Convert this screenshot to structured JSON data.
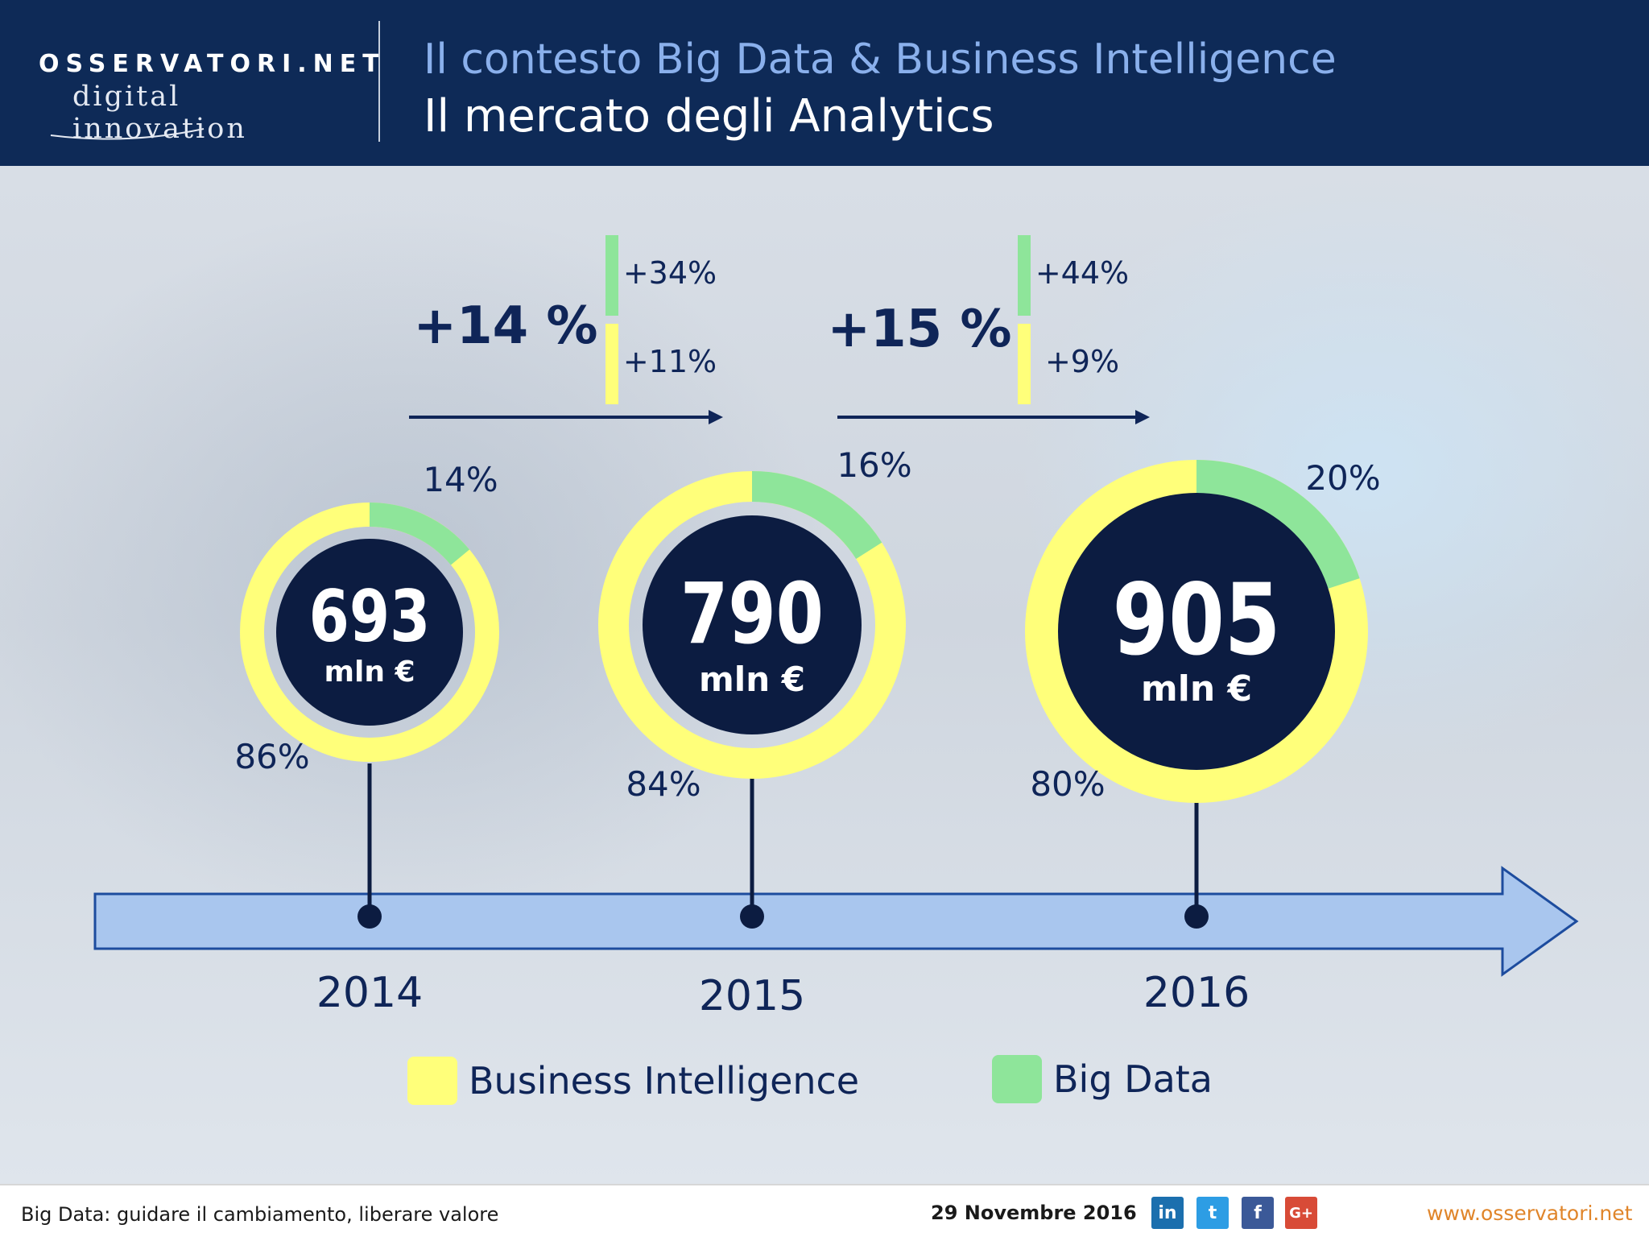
{
  "header": {
    "logo_brand": "OSSERVATORI.NET",
    "logo_sub": "digital innovation",
    "title_line1": "Il contesto Big Data & Business Intelligence",
    "title_line2": "Il mercato degli Analytics"
  },
  "colors": {
    "business_intelligence": "#ffff7a",
    "big_data": "#8ee59a",
    "donut_center": "#0c1c41",
    "timeline_fill": "#a9c6ee",
    "timeline_stroke": "#1d4c9e",
    "text_dark": "#0f2558"
  },
  "chart_data": {
    "type": "pie",
    "unit": "mln €",
    "legend": [
      "Business Intelligence",
      "Big Data"
    ],
    "legend_position": "bottom",
    "years": [
      {
        "year": "2014",
        "total": 693,
        "total_label": "693",
        "unit_label": "mln €",
        "big_data_pct": 14,
        "bi_pct": 86,
        "big_data_label": "14%",
        "bi_label": "86%"
      },
      {
        "year": "2015",
        "total": 790,
        "total_label": "790",
        "unit_label": "mln €",
        "big_data_pct": 16,
        "bi_pct": 84,
        "big_data_label": "16%",
        "bi_label": "84%"
      },
      {
        "year": "2016",
        "total": 905,
        "total_label": "905",
        "unit_label": "mln €",
        "big_data_pct": 20,
        "bi_pct": 80,
        "big_data_label": "20%",
        "bi_label": "80%"
      }
    ],
    "growth": [
      {
        "period": "2014-2015",
        "total": "+14 %",
        "big_data": "+34%",
        "bi": "+11%"
      },
      {
        "period": "2015-2016",
        "total": "+15 %",
        "big_data": "+44%",
        "bi": "+9%"
      }
    ]
  },
  "footer": {
    "left": "Big Data: guidare il cambiamento, liberare valore",
    "date": "29 Novembre 2016",
    "url": "www.osservatori.net",
    "social": {
      "linkedin": "in",
      "twitter": "t",
      "facebook": "f",
      "googleplus": "G+"
    },
    "social_icons": [
      "linkedin-icon",
      "twitter-icon",
      "facebook-icon",
      "googleplus-icon"
    ]
  }
}
